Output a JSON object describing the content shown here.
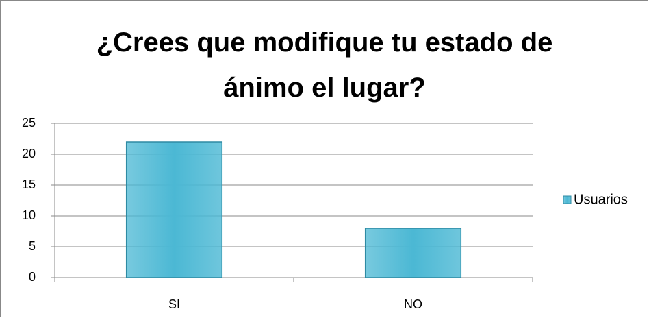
{
  "chart_data": {
    "type": "bar",
    "title": "¿Crees que modifique tu estado de ánimo el lugar?",
    "categories": [
      "SI",
      "NO"
    ],
    "series": [
      {
        "name": "Usuarios",
        "color": "#4bb8d4",
        "values": [
          22,
          8
        ]
      }
    ],
    "ylim": [
      0,
      25
    ],
    "yticks": [
      0,
      5,
      10,
      15,
      20,
      25
    ],
    "grid": true,
    "legend": "right"
  }
}
